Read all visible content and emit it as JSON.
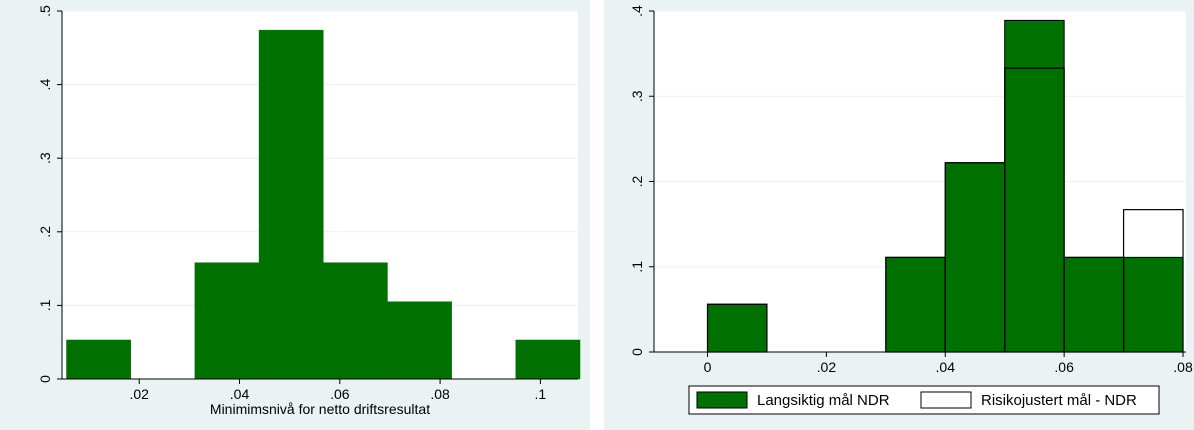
{
  "chart_data": [
    {
      "type": "bar",
      "subtype": "histogram",
      "xlabel": "Minimimsnivå for netto driftsresultat",
      "ylabel": "",
      "xlim": [
        0.0046,
        0.1075
      ],
      "ylim": [
        0,
        0.5
      ],
      "xticks": [
        ".02",
        ".04",
        ".06",
        ".08",
        ".1"
      ],
      "xtick_values": [
        0.02,
        0.04,
        0.06,
        0.08,
        0.1
      ],
      "yticks": [
        "0",
        ".1",
        ".2",
        ".3",
        ".4",
        ".5"
      ],
      "ytick_values": [
        0,
        0.1,
        0.2,
        0.3,
        0.4,
        0.5
      ],
      "grid": "horizontal",
      "bar_color": "#007000",
      "bins": [
        {
          "x0": 0.0055,
          "x1": 0.0183,
          "value": 0.053
        },
        {
          "x0": 0.0183,
          "x1": 0.0311,
          "value": 0
        },
        {
          "x0": 0.0311,
          "x1": 0.0439,
          "value": 0.158
        },
        {
          "x0": 0.0439,
          "x1": 0.0567,
          "value": 0.474
        },
        {
          "x0": 0.0567,
          "x1": 0.0695,
          "value": 0.158
        },
        {
          "x0": 0.0695,
          "x1": 0.0823,
          "value": 0.105
        },
        {
          "x0": 0.0823,
          "x1": 0.0951,
          "value": 0
        },
        {
          "x0": 0.0951,
          "x1": 0.1079,
          "value": 0.053
        }
      ]
    },
    {
      "type": "bar",
      "subtype": "overlaid-histogram",
      "xlabel": "",
      "ylabel": "",
      "xlim": [
        -0.009,
        0.0805
      ],
      "ylim": [
        0,
        0.4
      ],
      "xticks": [
        "0",
        ".02",
        ".04",
        ".06",
        ".08"
      ],
      "xtick_values": [
        0,
        0.02,
        0.04,
        0.06,
        0.08
      ],
      "yticks": [
        "0",
        ".1",
        ".2",
        ".3",
        ".4"
      ],
      "ytick_values": [
        0,
        0.1,
        0.2,
        0.3,
        0.4
      ],
      "grid": "horizontal",
      "legend_position": "bottom",
      "series": [
        {
          "name": "Langsiktig mål NDR",
          "style": "filled",
          "color": "#007000",
          "bins": [
            {
              "x0": 0.0,
              "x1": 0.01,
              "value": 0.056
            },
            {
              "x0": 0.03,
              "x1": 0.04,
              "value": 0.111
            },
            {
              "x0": 0.04,
              "x1": 0.05,
              "value": 0.222
            },
            {
              "x0": 0.05,
              "x1": 0.06,
              "value": 0.389
            },
            {
              "x0": 0.06,
              "x1": 0.07,
              "value": 0.111
            },
            {
              "x0": 0.07,
              "x1": 0.08,
              "value": 0.111
            }
          ]
        },
        {
          "name": "Risikojustert mål - NDR",
          "style": "outline",
          "color": "#000000",
          "bins": [
            {
              "x0": 0.0,
              "x1": 0.01,
              "value": 0.056
            },
            {
              "x0": 0.03,
              "x1": 0.04,
              "value": 0.111
            },
            {
              "x0": 0.04,
              "x1": 0.05,
              "value": 0.222
            },
            {
              "x0": 0.05,
              "x1": 0.06,
              "value": 0.333
            },
            {
              "x0": 0.06,
              "x1": 0.07,
              "value": 0.111
            },
            {
              "x0": 0.07,
              "x1": 0.08,
              "value": 0.167
            }
          ]
        }
      ]
    }
  ]
}
